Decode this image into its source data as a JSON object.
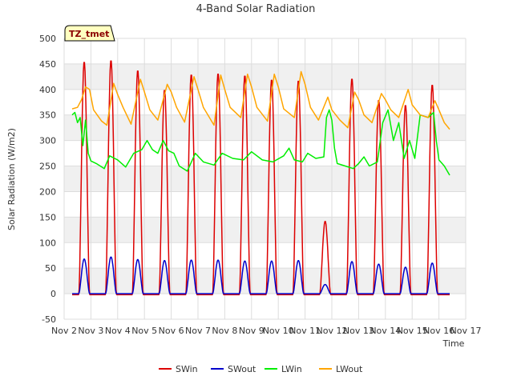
{
  "chart_data": {
    "type": "line",
    "title": "4-Band Solar Radiation",
    "xlabel": "Time",
    "ylabel": "Solar Radiation (W/m2)",
    "ylim": [
      -50,
      500
    ],
    "yticks": [
      -50,
      0,
      50,
      100,
      150,
      200,
      250,
      300,
      350,
      400,
      450,
      500
    ],
    "xlim": [
      2,
      17
    ],
    "xticks": [
      {
        "v": 2,
        "label": "Nov 2"
      },
      {
        "v": 3,
        "label": "Nov 3"
      },
      {
        "v": 4,
        "label": "Nov 4"
      },
      {
        "v": 5,
        "label": "Nov 5"
      },
      {
        "v": 6,
        "label": "Nov 6"
      },
      {
        "v": 7,
        "label": "Nov 7"
      },
      {
        "v": 8,
        "label": "Nov 8"
      },
      {
        "v": 9,
        "label": "Nov 9"
      },
      {
        "v": 10,
        "label": "Nov 10"
      },
      {
        "v": 11,
        "label": "Nov 11"
      },
      {
        "v": 12,
        "label": "Nov 12"
      },
      {
        "v": 13,
        "label": "Nov 13"
      },
      {
        "v": 14,
        "label": "Nov 14"
      },
      {
        "v": 15,
        "label": "Nov 15"
      },
      {
        "v": 16,
        "label": "Nov 16"
      },
      {
        "v": 17,
        "label": "Nov 17"
      }
    ],
    "x_start": 2.3,
    "x_end": 16.4,
    "annotation": "TZ_tmet",
    "legend_position": "bottom-center",
    "series": [
      {
        "name": "SWin",
        "color": "#dd0000",
        "nights": [
          -2,
          -2
        ],
        "days": [
          {
            "x": 2.75,
            "peak": 455
          },
          {
            "x": 3.75,
            "peak": 458
          },
          {
            "x": 4.75,
            "peak": 438
          },
          {
            "x": 5.75,
            "peak": 400
          },
          {
            "x": 6.75,
            "peak": 430
          },
          {
            "x": 7.75,
            "peak": 432
          },
          {
            "x": 8.75,
            "peak": 428
          },
          {
            "x": 9.75,
            "peak": 420
          },
          {
            "x": 10.75,
            "peak": 418
          },
          {
            "x": 11.75,
            "peak": 142
          },
          {
            "x": 12.75,
            "peak": 422
          },
          {
            "x": 13.75,
            "peak": 380
          },
          {
            "x": 14.75,
            "peak": 370
          },
          {
            "x": 15.75,
            "peak": 410
          }
        ]
      },
      {
        "name": "SWout",
        "color": "#0000cc",
        "nights": [
          0,
          1
        ],
        "days": [
          {
            "x": 2.75,
            "peak": 68
          },
          {
            "x": 3.75,
            "peak": 72
          },
          {
            "x": 4.75,
            "peak": 67
          },
          {
            "x": 5.75,
            "peak": 65
          },
          {
            "x": 6.75,
            "peak": 66
          },
          {
            "x": 7.75,
            "peak": 66
          },
          {
            "x": 8.75,
            "peak": 64
          },
          {
            "x": 9.75,
            "peak": 64
          },
          {
            "x": 10.75,
            "peak": 65
          },
          {
            "x": 11.75,
            "peak": 18
          },
          {
            "x": 12.75,
            "peak": 63
          },
          {
            "x": 13.75,
            "peak": 58
          },
          {
            "x": 14.75,
            "peak": 52
          },
          {
            "x": 15.75,
            "peak": 60
          }
        ]
      },
      {
        "name": "LWin",
        "color": "#00ee00",
        "points": [
          [
            2.3,
            350
          ],
          [
            2.4,
            355
          ],
          [
            2.5,
            335
          ],
          [
            2.6,
            345
          ],
          [
            2.7,
            290
          ],
          [
            2.8,
            340
          ],
          [
            2.9,
            275
          ],
          [
            3.0,
            260
          ],
          [
            3.2,
            255
          ],
          [
            3.5,
            245
          ],
          [
            3.7,
            270
          ],
          [
            4.0,
            262
          ],
          [
            4.3,
            248
          ],
          [
            4.6,
            275
          ],
          [
            4.9,
            282
          ],
          [
            5.1,
            300
          ],
          [
            5.3,
            282
          ],
          [
            5.5,
            275
          ],
          [
            5.7,
            300
          ],
          [
            5.9,
            280
          ],
          [
            6.1,
            275
          ],
          [
            6.3,
            250
          ],
          [
            6.6,
            240
          ],
          [
            6.9,
            275
          ],
          [
            7.2,
            258
          ],
          [
            7.6,
            252
          ],
          [
            7.9,
            275
          ],
          [
            8.3,
            265
          ],
          [
            8.7,
            262
          ],
          [
            9.0,
            278
          ],
          [
            9.4,
            262
          ],
          [
            9.8,
            258
          ],
          [
            10.2,
            270
          ],
          [
            10.4,
            285
          ],
          [
            10.6,
            262
          ],
          [
            10.9,
            258
          ],
          [
            11.1,
            275
          ],
          [
            11.4,
            265
          ],
          [
            11.7,
            268
          ],
          [
            11.8,
            345
          ],
          [
            11.9,
            360
          ],
          [
            12.0,
            340
          ],
          [
            12.1,
            285
          ],
          [
            12.2,
            255
          ],
          [
            12.5,
            250
          ],
          [
            12.8,
            245
          ],
          [
            13.0,
            255
          ],
          [
            13.2,
            268
          ],
          [
            13.4,
            250
          ],
          [
            13.7,
            258
          ],
          [
            13.9,
            335
          ],
          [
            14.1,
            360
          ],
          [
            14.3,
            300
          ],
          [
            14.5,
            335
          ],
          [
            14.7,
            265
          ],
          [
            14.9,
            300
          ],
          [
            15.1,
            265
          ],
          [
            15.3,
            350
          ],
          [
            15.6,
            345
          ],
          [
            15.8,
            355
          ],
          [
            15.9,
            300
          ],
          [
            16.0,
            262
          ],
          [
            16.2,
            250
          ],
          [
            16.4,
            232
          ]
        ]
      },
      {
        "name": "LWout",
        "color": "#ffa500",
        "points": [
          [
            2.3,
            362
          ],
          [
            2.5,
            365
          ],
          [
            2.65,
            380
          ],
          [
            2.8,
            405
          ],
          [
            2.95,
            400
          ],
          [
            3.1,
            360
          ],
          [
            3.4,
            338
          ],
          [
            3.6,
            330
          ],
          [
            3.85,
            412
          ],
          [
            4.0,
            390
          ],
          [
            4.2,
            365
          ],
          [
            4.5,
            332
          ],
          [
            4.85,
            420
          ],
          [
            5.0,
            395
          ],
          [
            5.2,
            360
          ],
          [
            5.5,
            340
          ],
          [
            5.85,
            410
          ],
          [
            6.0,
            395
          ],
          [
            6.2,
            365
          ],
          [
            6.5,
            336
          ],
          [
            6.85,
            425
          ],
          [
            7.0,
            400
          ],
          [
            7.2,
            365
          ],
          [
            7.6,
            330
          ],
          [
            7.85,
            428
          ],
          [
            8.0,
            400
          ],
          [
            8.2,
            365
          ],
          [
            8.6,
            345
          ],
          [
            8.85,
            430
          ],
          [
            9.0,
            405
          ],
          [
            9.2,
            365
          ],
          [
            9.6,
            338
          ],
          [
            9.85,
            430
          ],
          [
            10.0,
            405
          ],
          [
            10.2,
            362
          ],
          [
            10.6,
            345
          ],
          [
            10.85,
            435
          ],
          [
            11.0,
            410
          ],
          [
            11.2,
            365
          ],
          [
            11.5,
            340
          ],
          [
            11.85,
            385
          ],
          [
            12.0,
            360
          ],
          [
            12.3,
            340
          ],
          [
            12.6,
            325
          ],
          [
            12.85,
            395
          ],
          [
            13.0,
            380
          ],
          [
            13.2,
            350
          ],
          [
            13.5,
            335
          ],
          [
            13.85,
            392
          ],
          [
            14.0,
            380
          ],
          [
            14.2,
            360
          ],
          [
            14.5,
            345
          ],
          [
            14.85,
            400
          ],
          [
            15.0,
            370
          ],
          [
            15.3,
            350
          ],
          [
            15.6,
            345
          ],
          [
            15.85,
            378
          ],
          [
            16.0,
            360
          ],
          [
            16.2,
            335
          ],
          [
            16.4,
            322
          ]
        ]
      }
    ]
  }
}
